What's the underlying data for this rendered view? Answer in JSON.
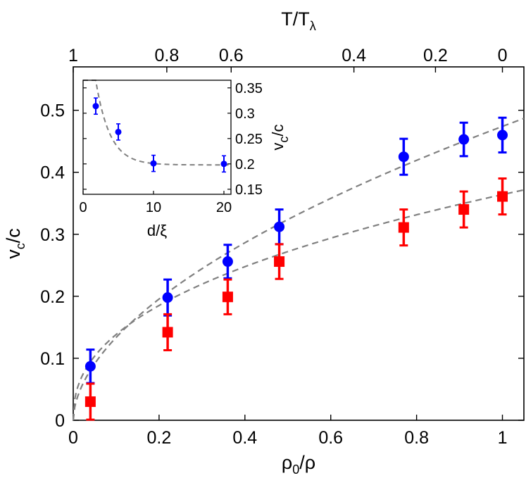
{
  "chart_data": [
    {
      "type": "scatter",
      "title": "",
      "xlabel": {
        "base": "ρ",
        "sub": "0",
        "rest": "/ρ"
      },
      "ylabel": {
        "base": "v",
        "sub": "c",
        "rest": "/c"
      },
      "top_xlabel": {
        "base": "T/T",
        "sub": "λ"
      },
      "xlim": [
        0,
        1.05
      ],
      "ylim": [
        0,
        0.57
      ],
      "x_ticks": [
        0,
        0.2,
        0.4,
        0.6,
        0.8,
        1
      ],
      "x_tick_labels": [
        "0",
        "0.2",
        "0.4",
        "0.6",
        "0.8",
        "1"
      ],
      "y_ticks": [
        0,
        0.1,
        0.2,
        0.3,
        0.4,
        0.5
      ],
      "y_tick_labels": [
        "0",
        "0.1",
        "0.2",
        "0.3",
        "0.4",
        "0.5"
      ],
      "top_ticks": [
        {
          "x": 0.0,
          "label": "1"
        },
        {
          "x": 0.218,
          "label": "0.8"
        },
        {
          "x": 0.368,
          "label": "0.6"
        },
        {
          "x": 0.654,
          "label": "0.4"
        },
        {
          "x": 0.844,
          "label": "0.2"
        },
        {
          "x": 1.0,
          "label": "0"
        }
      ],
      "grid": false,
      "series": [
        {
          "marker": "circle",
          "color": "#0000ff",
          "points": [
            {
              "x": 0.04,
              "y": 0.087,
              "err": 0.027
            },
            {
              "x": 0.22,
              "y": 0.198,
              "err": 0.029
            },
            {
              "x": 0.36,
              "y": 0.256,
              "err": 0.027
            },
            {
              "x": 0.48,
              "y": 0.312,
              "err": 0.028
            },
            {
              "x": 0.77,
              "y": 0.425,
              "err": 0.029
            },
            {
              "x": 0.91,
              "y": 0.453,
              "err": 0.027
            },
            {
              "x": 1.0,
              "y": 0.46,
              "err": 0.028
            }
          ]
        },
        {
          "marker": "square",
          "color": "#ff0000",
          "points": [
            {
              "x": 0.04,
              "y": 0.03,
              "err": 0.029
            },
            {
              "x": 0.22,
              "y": 0.142,
              "err": 0.029
            },
            {
              "x": 0.36,
              "y": 0.199,
              "err": 0.028
            },
            {
              "x": 0.48,
              "y": 0.256,
              "err": 0.028
            },
            {
              "x": 0.77,
              "y": 0.311,
              "err": 0.029
            },
            {
              "x": 0.91,
              "y": 0.34,
              "err": 0.029
            },
            {
              "x": 1.0,
              "y": 0.361,
              "err": 0.029
            }
          ]
        }
      ],
      "fit_curves": [
        {
          "style": "dashed",
          "color": "#808080",
          "form": "0.474*x^0.55"
        },
        {
          "style": "dashed",
          "color": "#808080",
          "form": "0.364*x^0.42"
        }
      ]
    },
    {
      "type": "scatter",
      "title": "",
      "xlabel": "d/ξ",
      "ylabel": {
        "base": "v",
        "sub": "c",
        "rest": "/c"
      },
      "ylabel_side": "right",
      "xlim": [
        0,
        21
      ],
      "ylim": [
        0.14,
        0.365
      ],
      "x_ticks": [
        0,
        10,
        20
      ],
      "x_tick_labels": [
        "0",
        "10",
        "20"
      ],
      "y_ticks": [
        0.15,
        0.2,
        0.25,
        0.3,
        0.35
      ],
      "y_tick_labels": [
        "0.15",
        "0.2",
        "0.25",
        "0.3",
        "0.35"
      ],
      "grid": false,
      "series": [
        {
          "marker": "circle",
          "color": "#0000ff",
          "points": [
            {
              "x": 1.8,
              "y": 0.314,
              "err": 0.016
            },
            {
              "x": 5.0,
              "y": 0.263,
              "err": 0.016
            },
            {
              "x": 10.0,
              "y": 0.201,
              "err": 0.016
            },
            {
              "x": 20.0,
              "y": 0.2,
              "err": 0.016
            }
          ]
        }
      ],
      "fit_curves": [
        {
          "style": "dashed",
          "color": "#808080",
          "form": "0.198+0.41*exp(-0.5*x)"
        }
      ]
    }
  ]
}
